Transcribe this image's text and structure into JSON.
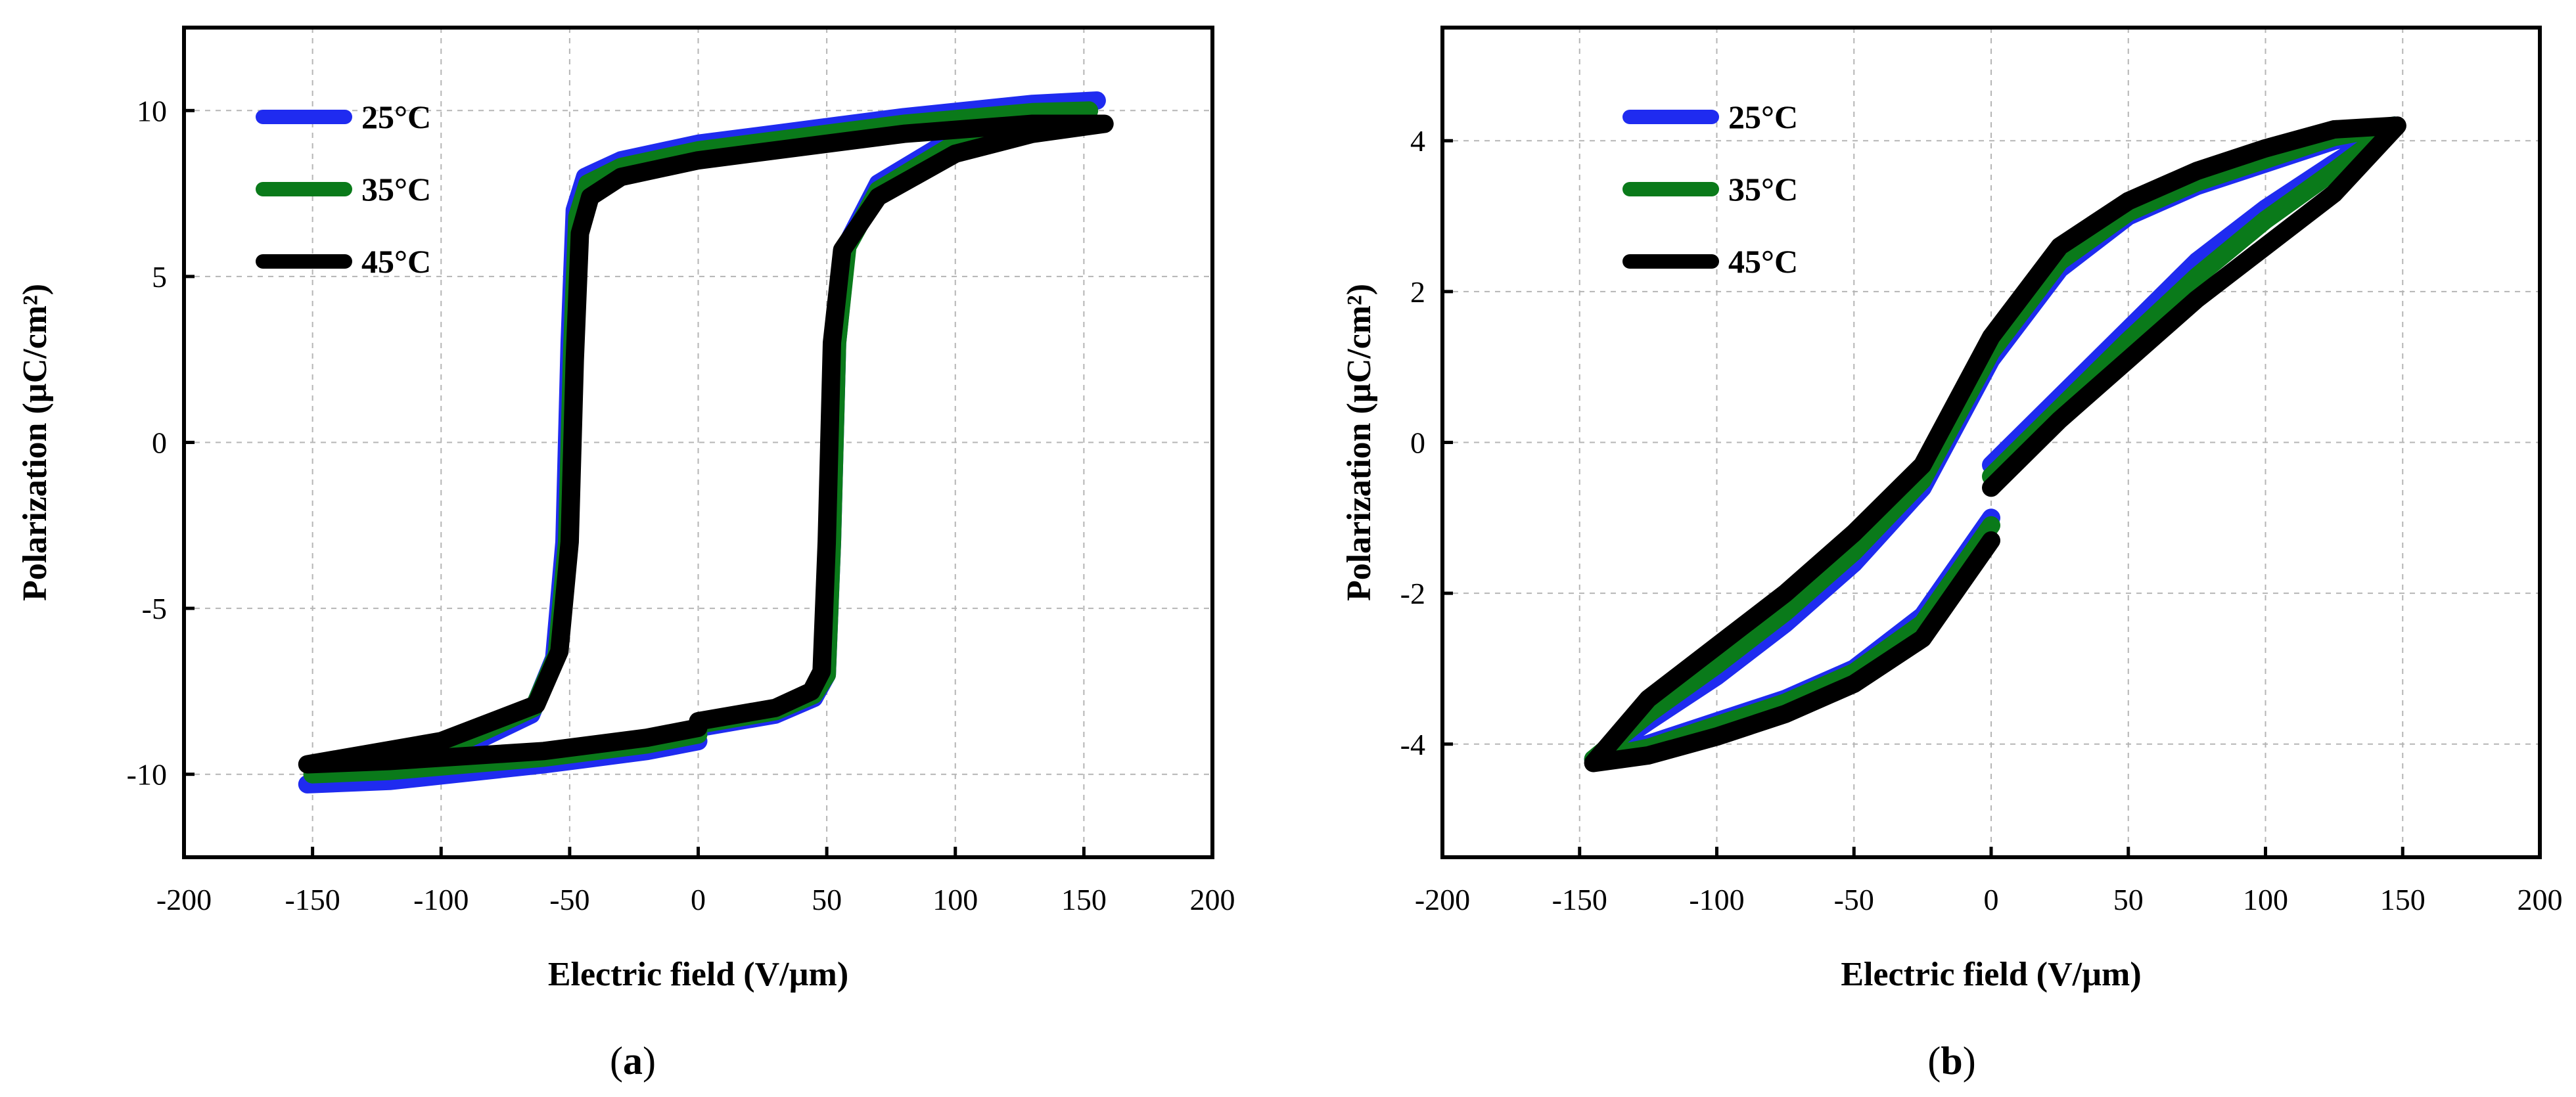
{
  "chart_data": [
    {
      "type": "line",
      "panel": "(a)",
      "caption_letter": "a",
      "title": "",
      "xlabel": "Electric field (V/µm)",
      "ylabel": "Polarization (µC/cm²)",
      "xlim": [
        -200,
        200
      ],
      "ylim": [
        -12.5,
        12.5
      ],
      "xticks": [
        -200,
        -150,
        -100,
        -50,
        0,
        50,
        100,
        150,
        200
      ],
      "yticks": [
        -10,
        -5,
        0,
        5,
        10
      ],
      "grid": true,
      "legend_position": "top-left",
      "series": [
        {
          "name": "25°C",
          "color": "#1f2bf0",
          "x": [
            0,
            30,
            45,
            50,
            52,
            54,
            58,
            70,
            100,
            130,
            155,
            130,
            80,
            30,
            0,
            -30,
            -44,
            -48,
            -50,
            -52,
            -56,
            -65,
            -100,
            -152,
            -120,
            -60,
            -20,
            0
          ],
          "y": [
            -8.6,
            -8.2,
            -7.7,
            -7.0,
            -3.0,
            3.0,
            6.0,
            7.8,
            9.2,
            10.0,
            10.3,
            10.2,
            9.8,
            9.3,
            9.0,
            8.5,
            8.0,
            7.0,
            3.0,
            -3.0,
            -6.5,
            -8.2,
            -9.5,
            -10.3,
            -10.2,
            -9.7,
            -9.3,
            -9.0
          ]
        },
        {
          "name": "35°C",
          "color": "#0a7a1a",
          "x": [
            0,
            30,
            45,
            50,
            52,
            54,
            58,
            70,
            100,
            130,
            152,
            130,
            80,
            30,
            0,
            -30,
            -43,
            -47,
            -49,
            -51,
            -55,
            -64,
            -100,
            -150,
            -120,
            -60,
            -20,
            0
          ],
          "y": [
            -8.5,
            -8.1,
            -7.6,
            -7.0,
            -3.0,
            3.0,
            5.9,
            7.6,
            9.0,
            9.7,
            10.0,
            9.95,
            9.6,
            9.1,
            8.8,
            8.3,
            7.8,
            6.8,
            2.8,
            -3.0,
            -6.4,
            -8.0,
            -9.3,
            -10.0,
            -9.9,
            -9.5,
            -9.1,
            -8.8
          ]
        },
        {
          "name": "45°C",
          "color": "#000000",
          "x": [
            0,
            30,
            44,
            48,
            50,
            52,
            56,
            70,
            100,
            130,
            158,
            130,
            80,
            30,
            0,
            -30,
            -42,
            -46,
            -48,
            -50,
            -54,
            -63,
            -100,
            -152,
            -120,
            -60,
            -20,
            0
          ],
          "y": [
            -8.4,
            -8.0,
            -7.5,
            -6.9,
            -3.0,
            3.0,
            5.8,
            7.4,
            8.7,
            9.3,
            9.6,
            9.6,
            9.3,
            8.8,
            8.5,
            8.0,
            7.4,
            6.3,
            2.5,
            -3.0,
            -6.3,
            -7.9,
            -9.0,
            -9.7,
            -9.6,
            -9.3,
            -8.9,
            -8.6
          ]
        }
      ]
    },
    {
      "type": "line",
      "panel": "(b)",
      "caption_letter": "b",
      "title": "",
      "xlabel": "Electric field (V/µm)",
      "ylabel": "Polarization (µC/cm²)",
      "xlim": [
        -200,
        200
      ],
      "ylim": [
        -5.5,
        5.5
      ],
      "xticks": [
        -200,
        -150,
        -100,
        -50,
        0,
        50,
        100,
        150,
        200
      ],
      "yticks": [
        -4,
        -2,
        0,
        2,
        4
      ],
      "grid": true,
      "legend_position": "top-left",
      "series": [
        {
          "name": "25°C",
          "color": "#1f2bf0",
          "x": [
            0,
            25,
            50,
            75,
            100,
            125,
            147,
            125,
            100,
            75,
            50,
            25,
            0,
            -25,
            -50,
            -75,
            -100,
            -125,
            -145,
            -125,
            -100,
            -75,
            -50,
            -25,
            0
          ],
          "y": [
            -0.3,
            0.6,
            1.5,
            2.4,
            3.1,
            3.7,
            4.2,
            4.0,
            3.7,
            3.4,
            3.0,
            2.3,
            1.1,
            -0.6,
            -1.6,
            -2.4,
            -3.1,
            -3.7,
            -4.2,
            -4.0,
            -3.7,
            -3.4,
            -3.0,
            -2.3,
            -1.0
          ]
        },
        {
          "name": "35°C",
          "color": "#0a7a1a",
          "x": [
            0,
            25,
            50,
            75,
            100,
            125,
            147,
            125,
            100,
            75,
            50,
            25,
            0,
            -25,
            -50,
            -75,
            -100,
            -125,
            -145,
            -125,
            -100,
            -75,
            -50,
            -25,
            0
          ],
          "y": [
            -0.45,
            0.45,
            1.35,
            2.2,
            2.95,
            3.6,
            4.2,
            4.05,
            3.75,
            3.45,
            3.05,
            2.4,
            1.2,
            -0.5,
            -1.45,
            -2.25,
            -2.95,
            -3.6,
            -4.2,
            -4.05,
            -3.75,
            -3.45,
            -3.05,
            -2.4,
            -1.1
          ]
        },
        {
          "name": "45°C",
          "color": "#000000",
          "x": [
            0,
            25,
            50,
            75,
            100,
            125,
            148,
            125,
            100,
            75,
            50,
            25,
            0,
            -25,
            -50,
            -75,
            -100,
            -125,
            -145,
            -125,
            -100,
            -75,
            -50,
            -25,
            0
          ],
          "y": [
            -0.6,
            0.3,
            1.1,
            1.9,
            2.6,
            3.3,
            4.2,
            4.15,
            3.9,
            3.6,
            3.2,
            2.6,
            1.4,
            -0.3,
            -1.2,
            -2.0,
            -2.7,
            -3.4,
            -4.25,
            -4.15,
            -3.9,
            -3.6,
            -3.2,
            -2.6,
            -1.3
          ]
        }
      ]
    }
  ]
}
